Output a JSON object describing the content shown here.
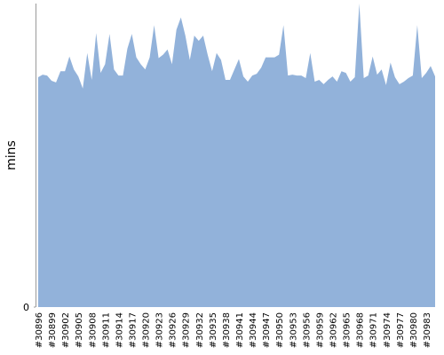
{
  "chart_data": {
    "type": "area",
    "y_label": "mins",
    "color": "#92b2da",
    "categories": [
      "#30896",
      null,
      null,
      "#30899",
      null,
      null,
      "#30902",
      null,
      null,
      "#30905",
      null,
      null,
      "#30908",
      null,
      null,
      "#30911",
      null,
      null,
      "#30914",
      null,
      null,
      "#30917",
      null,
      null,
      "#30920",
      null,
      null,
      "#30923",
      null,
      null,
      "#30926",
      null,
      null,
      "#30929",
      null,
      null,
      "#30932",
      null,
      null,
      "#30935",
      null,
      null,
      "#30938",
      null,
      null,
      "#30941",
      null,
      null,
      "#30944",
      null,
      null,
      "#30947",
      null,
      null,
      "#30950",
      null,
      null,
      "#30953",
      null,
      null,
      "#30956",
      null,
      null,
      "#30959",
      null,
      null,
      "#30962",
      null,
      null,
      "#30965",
      null,
      null,
      "#30968",
      null,
      null,
      "#30971",
      null,
      null,
      "#30974",
      null,
      null,
      "#30977",
      null,
      null,
      "#30980",
      null,
      null,
      "#30983",
      null,
      null
    ],
    "values": [
      26.5,
      26.8,
      26.7,
      26.1,
      25.9,
      27.2,
      27.2,
      28.9,
      27.4,
      26.6,
      25.2,
      29.3,
      26.2,
      31.6,
      27.0,
      28.0,
      31.5,
      27.4,
      26.7,
      26.7,
      29.8,
      31.5,
      28.8,
      28.0,
      27.4,
      28.8,
      32.5,
      28.7,
      29.1,
      29.7,
      28.0,
      32.0,
      33.4,
      31.3,
      28.5,
      31.3,
      30.7,
      31.3,
      29.1,
      27.2,
      29.3,
      28.5,
      26.2,
      26.2,
      27.4,
      28.6,
      26.6,
      26.0,
      26.7,
      26.9,
      27.6,
      28.8,
      28.8,
      28.8,
      29.1,
      32.5,
      26.7,
      26.8,
      26.7,
      26.7,
      26.4,
      29.3,
      26.0,
      26.2,
      25.7,
      26.2,
      26.6,
      26.0,
      27.2,
      27.0,
      26.0,
      26.5,
      35.0,
      26.4,
      26.7,
      28.9,
      26.8,
      27.4,
      25.6,
      28.2,
      26.5,
      25.7,
      26.0,
      26.4,
      26.7,
      32.5,
      26.4,
      27.0,
      27.8,
      26.6
    ],
    "ylim": [
      0,
      35
    ],
    "yticks": [
      0
    ]
  }
}
